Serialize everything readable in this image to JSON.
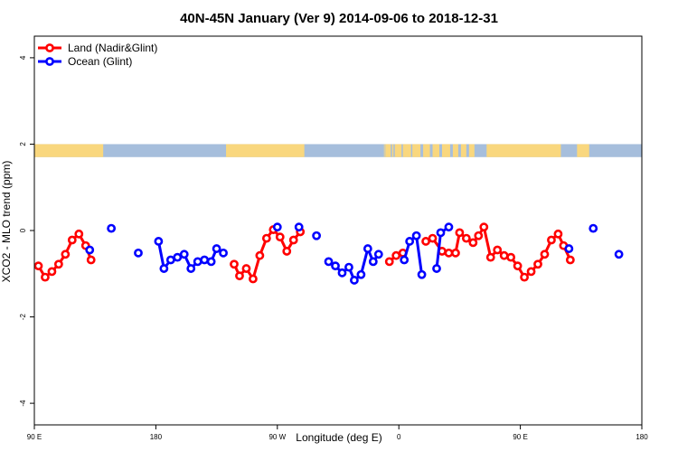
{
  "chart_data": {
    "type": "line",
    "title": "40N-45N January (Ver 9)   2014-09-06 to 2018-12-31",
    "xlabel": "Longitude (deg E)",
    "ylabel": "XCO2 - MLO trend (ppm)",
    "xlim": [
      90,
      540
    ],
    "ylim": [
      -4.5,
      4.5
    ],
    "x_ticks": [
      {
        "value": 90,
        "label": "90 E"
      },
      {
        "value": 180,
        "label": "180"
      },
      {
        "value": 270,
        "label": "90 W"
      },
      {
        "value": 360,
        "label": "0"
      },
      {
        "value": 450,
        "label": "90 E"
      },
      {
        "value": 540,
        "label": "180"
      }
    ],
    "y_ticks": [
      {
        "value": -4,
        "label": "-4"
      },
      {
        "value": -2,
        "label": "-2"
      },
      {
        "value": 0,
        "label": "0"
      },
      {
        "value": 2,
        "label": "2"
      },
      {
        "value": 4,
        "label": "4"
      }
    ],
    "grid": false,
    "legend_position": "top-left",
    "land_mask": {
      "y_range": [
        1.7,
        2.0
      ],
      "land_color": "#f9d77e",
      "ocean_color": "#a6bedc",
      "land_segments": [
        [
          90,
          141
        ],
        [
          232,
          290
        ],
        [
          349,
          349.5
        ],
        [
          350,
          354
        ],
        [
          355,
          356
        ],
        [
          357,
          362
        ],
        [
          363,
          369
        ],
        [
          370,
          376
        ],
        [
          378,
          383
        ],
        [
          385,
          390
        ],
        [
          392,
          398
        ],
        [
          400,
          404
        ],
        [
          406,
          410
        ],
        [
          412,
          416
        ],
        [
          425,
          480
        ],
        [
          492,
          501
        ]
      ]
    },
    "series": [
      {
        "name": "Land (Nadir&Glint)",
        "color": "#ff0000",
        "segments": [
          [
            [
              93,
              -0.82
            ],
            [
              98,
              -1.08
            ],
            [
              103,
              -0.95
            ],
            [
              108,
              -0.78
            ],
            [
              113,
              -0.55
            ],
            [
              118,
              -0.22
            ],
            [
              123,
              -0.08
            ],
            [
              128,
              -0.35
            ],
            [
              132,
              -0.68
            ]
          ],
          [
            [
              238,
              -0.78
            ],
            [
              242,
              -1.05
            ],
            [
              247,
              -0.88
            ],
            [
              252,
              -1.12
            ],
            [
              257,
              -0.58
            ],
            [
              262,
              -0.18
            ],
            [
              267,
              0.02
            ],
            [
              272,
              -0.15
            ],
            [
              277,
              -0.48
            ],
            [
              282,
              -0.22
            ],
            [
              287,
              -0.03
            ]
          ],
          [
            [
              353,
              -0.72
            ],
            [
              358,
              -0.58
            ],
            [
              363,
              -0.52
            ]
          ],
          [
            [
              380,
              -0.25
            ],
            [
              385,
              -0.18
            ],
            [
              392,
              -0.48
            ],
            [
              397,
              -0.52
            ],
            [
              402,
              -0.52
            ],
            [
              405,
              -0.05
            ],
            [
              410,
              -0.18
            ],
            [
              415,
              -0.28
            ],
            [
              419,
              -0.12
            ],
            [
              423,
              0.08
            ],
            [
              428,
              -0.62
            ],
            [
              433,
              -0.45
            ],
            [
              438,
              -0.58
            ],
            [
              443,
              -0.62
            ],
            [
              448,
              -0.82
            ],
            [
              453,
              -1.08
            ],
            [
              458,
              -0.95
            ],
            [
              463,
              -0.78
            ],
            [
              468,
              -0.55
            ],
            [
              473,
              -0.22
            ],
            [
              478,
              -0.08
            ],
            [
              482,
              -0.35
            ],
            [
              487,
              -0.68
            ]
          ]
        ]
      },
      {
        "name": "Ocean (Glint)",
        "color": "#0000ff",
        "segments": [
          [
            [
              131,
              -0.45
            ]
          ],
          [
            [
              147,
              0.05
            ]
          ],
          [
            [
              167,
              -0.52
            ]
          ],
          [
            [
              182,
              -0.25
            ],
            [
              186,
              -0.88
            ],
            [
              191,
              -0.68
            ],
            [
              196,
              -0.62
            ],
            [
              201,
              -0.55
            ],
            [
              206,
              -0.88
            ],
            [
              211,
              -0.72
            ],
            [
              216,
              -0.68
            ],
            [
              221,
              -0.72
            ],
            [
              225,
              -0.42
            ],
            [
              230,
              -0.52
            ]
          ],
          [
            [
              270,
              0.08
            ]
          ],
          [
            [
              286,
              0.08
            ]
          ],
          [
            [
              299,
              -0.12
            ]
          ],
          [
            [
              308,
              -0.72
            ],
            [
              313,
              -0.82
            ],
            [
              318,
              -0.98
            ],
            [
              323,
              -0.85
            ],
            [
              327,
              -1.15
            ],
            [
              332,
              -1.02
            ],
            [
              337,
              -0.42
            ],
            [
              341,
              -0.72
            ],
            [
              345,
              -0.55
            ]
          ],
          [
            [
              364,
              -0.68
            ],
            [
              368,
              -0.25
            ],
            [
              373,
              -0.12
            ],
            [
              377,
              -1.02
            ]
          ],
          [
            [
              388,
              -0.88
            ],
            [
              391,
              -0.05
            ],
            [
              397,
              0.08
            ]
          ],
          [
            [
              486,
              -0.42
            ]
          ],
          [
            [
              504,
              0.05
            ]
          ],
          [
            [
              523,
              -0.55
            ]
          ]
        ]
      }
    ]
  }
}
